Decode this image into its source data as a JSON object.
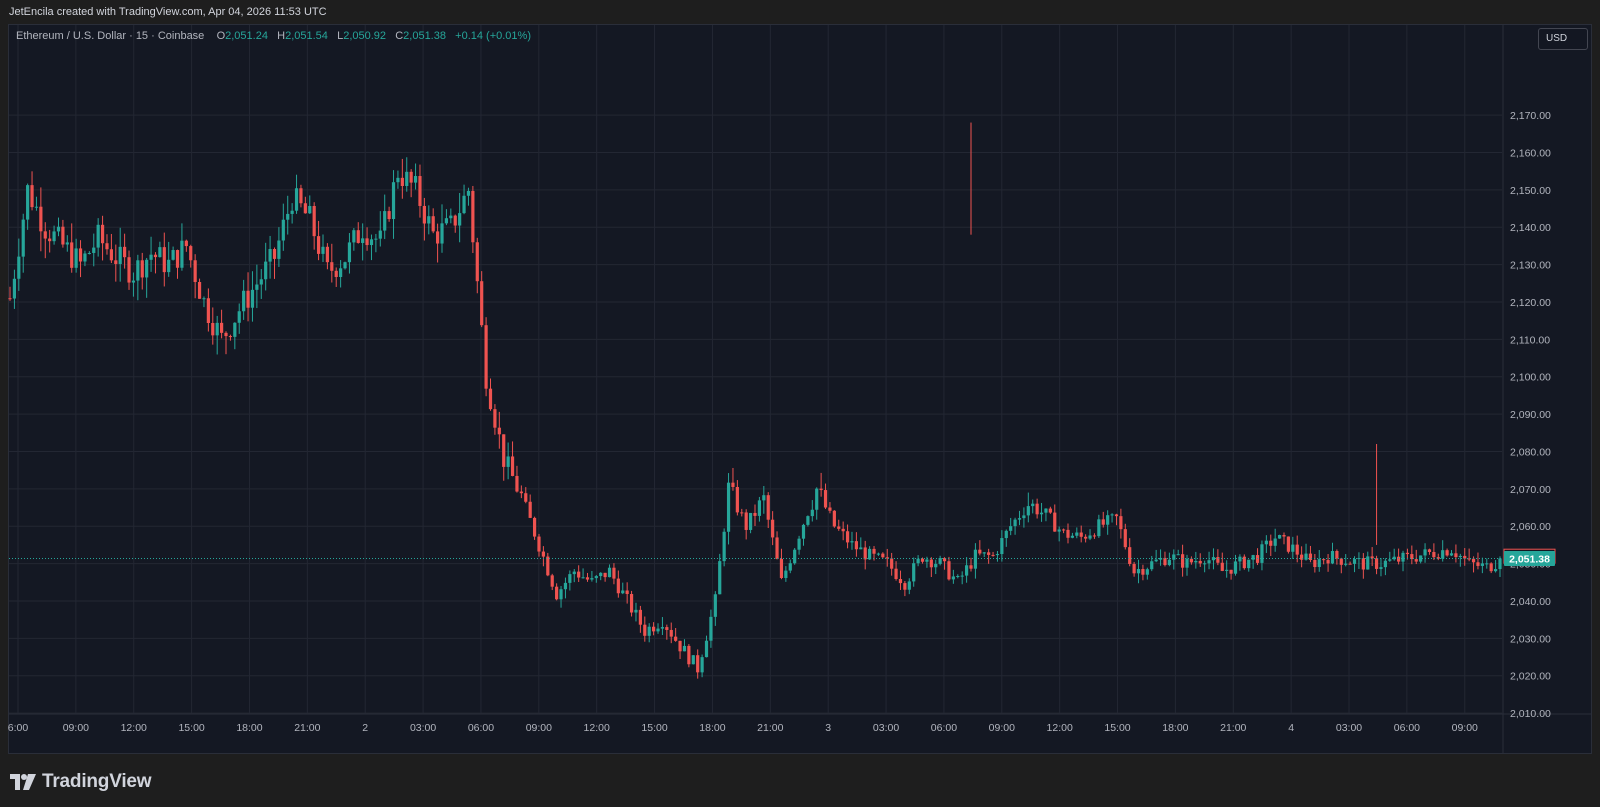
{
  "header": {
    "credit": "JetEncila created with TradingView.com, Apr 04, 2026 11:53 UTC"
  },
  "legend": {
    "symbol": "Ethereum / U.S. Dollar · 15 · Coinbase",
    "open_label": "O",
    "open": "2,051.24",
    "high_label": "H",
    "high": "2,051.54",
    "low_label": "L",
    "low": "2,050.92",
    "close_label": "C",
    "close": "2,051.38",
    "change": "+0.14 (+0.01%)"
  },
  "currency_button": "USD",
  "price_tags": {
    "red": "2,051.98",
    "green": "2,051.38"
  },
  "brand": {
    "name": "TradingView"
  },
  "colors": {
    "up": "#26a69a",
    "down": "#ef5350",
    "background": "#141823",
    "grid": "#232733",
    "text": "#b2b5be"
  },
  "chart_data": {
    "type": "candlestick",
    "symbol": "Ethereum / U.S. Dollar",
    "interval": "15",
    "exchange": "Coinbase",
    "currency": "USD",
    "y_ticks": [
      2010,
      2020,
      2030,
      2040,
      2050,
      2060,
      2070,
      2080,
      2090,
      2100,
      2110,
      2120,
      2130,
      2140,
      2150,
      2160,
      2170
    ],
    "y_tick_labels": [
      "2,010.00",
      "2,020.00",
      "2,030.00",
      "2,040.00",
      "2,050.00",
      "2,060.00",
      "2,070.00",
      "2,080.00",
      "2,090.00",
      "2,100.00",
      "2,110.00",
      "2,120.00",
      "2,130.00",
      "2,140.00",
      "2,150.00",
      "2,160.00",
      "2,170.00"
    ],
    "x_tick_labels": [
      "6:00",
      "09:00",
      "12:00",
      "15:00",
      "18:00",
      "21:00",
      "2",
      "03:00",
      "06:00",
      "09:00",
      "12:00",
      "15:00",
      "18:00",
      "21:00",
      "3",
      "03:00",
      "06:00",
      "09:00",
      "12:00",
      "15:00",
      "18:00",
      "21:00",
      "4",
      "03:00",
      "06:00",
      "09:00"
    ],
    "last_price": 2051.38,
    "prev_close": 2051.98,
    "grid": true,
    "price_path": [
      [
        0,
        2121
      ],
      [
        4,
        2150
      ],
      [
        8,
        2140
      ],
      [
        12,
        2135
      ],
      [
        16,
        2130
      ],
      [
        20,
        2137
      ],
      [
        24,
        2132
      ],
      [
        28,
        2128
      ],
      [
        32,
        2133
      ],
      [
        36,
        2130
      ],
      [
        40,
        2135
      ],
      [
        44,
        2120
      ],
      [
        48,
        2110
      ],
      [
        52,
        2118
      ],
      [
        56,
        2125
      ],
      [
        60,
        2132
      ],
      [
        64,
        2148
      ],
      [
        68,
        2142
      ],
      [
        72,
        2128
      ],
      [
        76,
        2132
      ],
      [
        80,
        2140
      ],
      [
        84,
        2136
      ],
      [
        88,
        2155
      ],
      [
        92,
        2150
      ],
      [
        96,
        2138
      ],
      [
        100,
        2140
      ],
      [
        104,
        2150
      ],
      [
        108,
        2100
      ],
      [
        112,
        2078
      ],
      [
        116,
        2068
      ],
      [
        120,
        2055
      ],
      [
        124,
        2042
      ],
      [
        128,
        2048
      ],
      [
        132,
        2045
      ],
      [
        136,
        2048
      ],
      [
        140,
        2040
      ],
      [
        144,
        2032
      ],
      [
        148,
        2035
      ],
      [
        152,
        2028
      ],
      [
        156,
        2022
      ],
      [
        160,
        2040
      ],
      [
        163,
        2070
      ],
      [
        167,
        2060
      ],
      [
        171,
        2067
      ],
      [
        175,
        2045
      ],
      [
        179,
        2058
      ],
      [
        183,
        2070
      ],
      [
        187,
        2060
      ],
      [
        191,
        2055
      ],
      [
        195,
        2052
      ],
      [
        199,
        2050
      ],
      [
        203,
        2045
      ],
      [
        207,
        2052
      ],
      [
        211,
        2050
      ],
      [
        215,
        2045
      ],
      [
        219,
        2052
      ],
      [
        223,
        2052
      ],
      [
        227,
        2060
      ],
      [
        231,
        2066
      ],
      [
        235,
        2063
      ],
      [
        239,
        2058
      ],
      [
        243,
        2057
      ],
      [
        247,
        2060
      ],
      [
        251,
        2062
      ],
      [
        255,
        2048
      ],
      [
        259,
        2050
      ],
      [
        263,
        2052
      ],
      [
        267,
        2050
      ],
      [
        271,
        2052
      ],
      [
        275,
        2048
      ],
      [
        279,
        2050
      ],
      [
        283,
        2052
      ],
      [
        287,
        2057
      ],
      [
        291,
        2054
      ],
      [
        295,
        2050
      ],
      [
        299,
        2052
      ],
      [
        303,
        2051
      ],
      [
        307,
        2050
      ],
      [
        311,
        2050
      ],
      [
        315,
        2051
      ],
      [
        319,
        2052
      ],
      [
        323,
        2053
      ],
      [
        327,
        2054
      ],
      [
        331,
        2050
      ],
      [
        335,
        2049
      ],
      [
        338,
        2051
      ]
    ]
  }
}
